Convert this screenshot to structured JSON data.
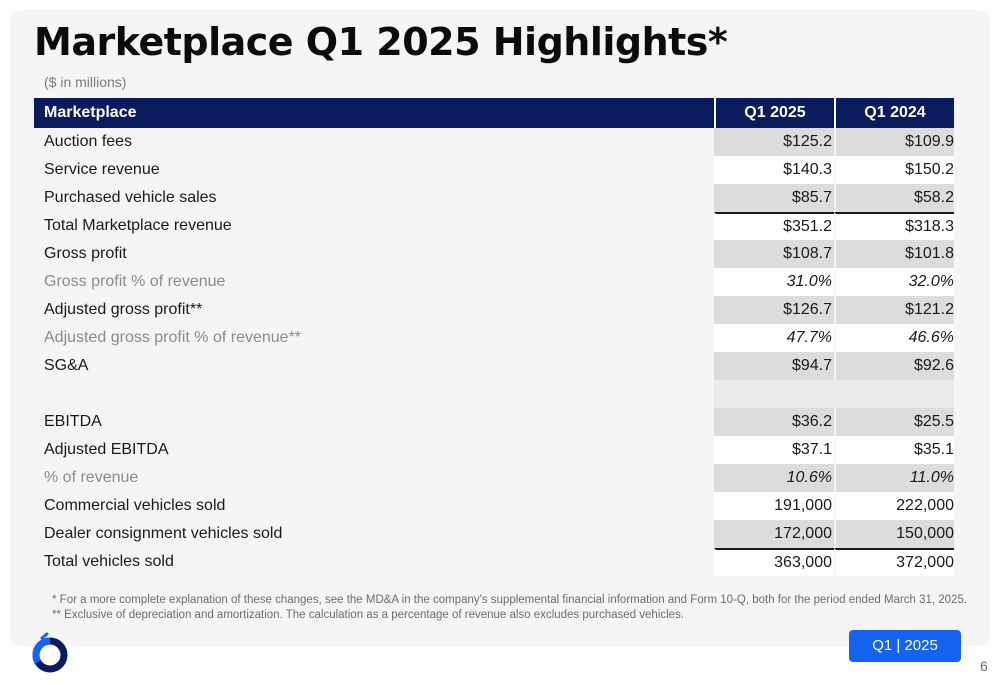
{
  "title": "Marketplace Q1 2025 Highlights*",
  "units_note": "($ in millions)",
  "table": {
    "headers": [
      "Marketplace",
      "Q1 2025",
      "Q1 2024"
    ],
    "rows": [
      {
        "label": "Auction fees",
        "q1_2025": "$125.2",
        "q1_2024": "$109.9"
      },
      {
        "label": "Service revenue",
        "q1_2025": "$140.3",
        "q1_2024": "$150.2"
      },
      {
        "label": "Purchased vehicle sales",
        "q1_2025": "$85.7",
        "q1_2024": "$58.2"
      },
      {
        "label": "Total Marketplace revenue",
        "q1_2025": "$351.2",
        "q1_2024": "$318.3"
      },
      {
        "label": "Gross profit",
        "q1_2025": "$108.7",
        "q1_2024": "$101.8"
      },
      {
        "label": "Gross profit % of revenue",
        "q1_2025": "31.0%",
        "q1_2024": "32.0%"
      },
      {
        "label": "Adjusted gross profit**",
        "q1_2025": "$126.7",
        "q1_2024": "$121.2"
      },
      {
        "label": "Adjusted gross profit % of revenue**",
        "q1_2025": "47.7%",
        "q1_2024": "46.6%"
      },
      {
        "label": "SG&A",
        "q1_2025": "$94.7",
        "q1_2024": "$92.6"
      },
      {
        "label": "",
        "q1_2025": "",
        "q1_2024": ""
      },
      {
        "label": "EBITDA",
        "q1_2025": "$36.2",
        "q1_2024": "$25.5"
      },
      {
        "label": "Adjusted EBITDA",
        "q1_2025": "$37.1",
        "q1_2024": "$35.1"
      },
      {
        "label": "% of revenue",
        "q1_2025": "10.6%",
        "q1_2024": "11.0%"
      },
      {
        "label": "Commercial vehicles sold",
        "q1_2025": "191,000",
        "q1_2024": "222,000"
      },
      {
        "label": "Dealer consignment vehicles sold",
        "q1_2025": "172,000",
        "q1_2024": "150,000"
      },
      {
        "label": "Total vehicles sold",
        "q1_2025": "363,000",
        "q1_2024": "372,000"
      }
    ]
  },
  "footnotes": [
    "* For a more complete explanation of these changes, see the MD&A in the company's supplemental financial information and Form 10-Q, both for the period ended March 31, 2025.",
    "** Exclusive of depreciation and amortization. The calculation as a percentage of revenue also excludes purchased vehicles."
  ],
  "badge": "Q1 | 2025",
  "page_number": "6",
  "colors": {
    "header_bg": "#0b1c5e",
    "badge_bg": "#1463f3",
    "logo_blue": "#1463f3",
    "logo_navy": "#0b1c5e",
    "row_shade": "#dcdcde"
  },
  "icons": {
    "logo": "brand-ring-logo"
  }
}
